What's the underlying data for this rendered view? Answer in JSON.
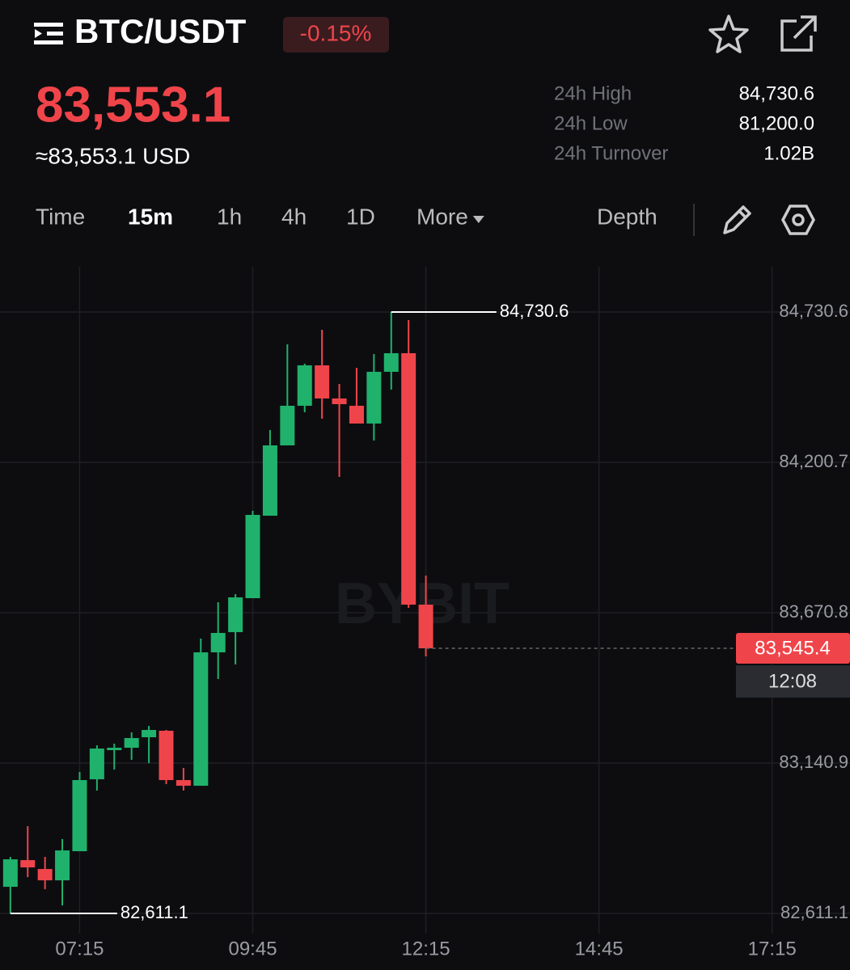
{
  "header": {
    "title": "BTC/USDT",
    "change": "-0.15%",
    "price": "83,553.1",
    "price_usd": "≈83,553.1 USD",
    "stats": [
      {
        "label": "24h High",
        "value": "84,730.6"
      },
      {
        "label": "24h Low",
        "value": "81,200.0"
      },
      {
        "label": "24h Turnover",
        "value": "1.02B"
      }
    ]
  },
  "tabs": {
    "items": [
      "Time",
      "15m",
      "1h",
      "4h",
      "1D",
      "More"
    ],
    "active": 1,
    "depth": "Depth"
  },
  "chart_data": {
    "type": "candlestick",
    "watermark": "BYBIT",
    "up_color": "#20b26c",
    "down_color": "#ef454a",
    "grid": true,
    "open": [
      82705.0,
      82799.0,
      82767.7,
      82727.8,
      82830.4,
      83083.9,
      83186.5,
      83195.0,
      83232.1,
      83254.9,
      83081.1,
      83061.1,
      83531.2,
      83602.4,
      83722.1,
      84012.7,
      84260.5,
      84400.1,
      84542.6,
      84425.8,
      84400.1,
      84337.5,
      84519.8,
      84585.3,
      83699.3
    ],
    "high": [
      82810.4,
      82918.7,
      82810.4,
      82873.1,
      83109.6,
      83203.6,
      83209.3,
      83249.2,
      83272.0,
      83257.7,
      83123.8,
      83579.6,
      83707.8,
      83736.3,
      84029.8,
      84314.7,
      84616.6,
      84548.3,
      84667.9,
      84477.0,
      84534.0,
      84582.5,
      84730.6,
      84702.1,
      83801.9
    ],
    "low": [
      82611.1,
      82739.2,
      82696.5,
      82639.5,
      82830.4,
      83044.1,
      83118.1,
      83152.3,
      83140.9,
      83066.8,
      83044.1,
      83061.1,
      83437.2,
      83488.5,
      83722.1,
      84012.7,
      84260.5,
      84377.3,
      84354.5,
      84149.4,
      84337.5,
      84277.6,
      84457.1,
      83687.9,
      83517.0
    ],
    "close": [
      82801.9,
      82773.4,
      82727.8,
      82833.2,
      83081.1,
      83192.2,
      83195.0,
      83229.2,
      83257.7,
      83081.1,
      83061.1,
      83531.2,
      83599.6,
      83724.9,
      84015.5,
      84260.5,
      84400.1,
      84542.6,
      84425.8,
      84405.8,
      84337.5,
      84519.8,
      84585.3,
      83699.3,
      83545.4
    ],
    "xlim": [
      -0.6,
      48.5
    ],
    "xticks": [
      {
        "value": 4,
        "label": "07:15"
      },
      {
        "value": 14,
        "label": "09:45"
      },
      {
        "value": 24,
        "label": "12:15"
      },
      {
        "value": 34,
        "label": "14:45"
      },
      {
        "value": 44,
        "label": "17:15"
      }
    ],
    "ylim": [
      82540,
      84890
    ],
    "yticks": [
      {
        "value": 82611.1,
        "label": "82,611.1"
      },
      {
        "value": 83140.9,
        "label": "83,140.9"
      },
      {
        "value": 83670.8,
        "label": "83,670.8"
      },
      {
        "value": 84200.7,
        "label": "84,200.7"
      },
      {
        "value": 84730.6,
        "label": "84,730.6"
      }
    ],
    "high_marker": {
      "value": 84730.6,
      "label": "84,730.6"
    },
    "low_marker": {
      "value": 82611.1,
      "label": "82,611.1"
    },
    "last_price": {
      "value": 83545.4,
      "label": "83,545.4",
      "countdown": "12:08"
    }
  }
}
